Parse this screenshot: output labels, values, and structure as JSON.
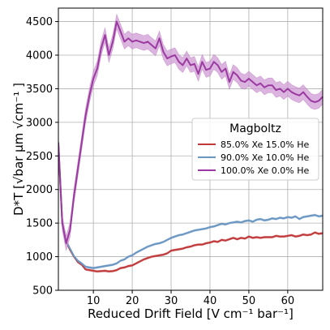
{
  "chart_data": {
    "type": "line",
    "xlabel": "Reduced Drift Field [V cm⁻¹ bar⁻¹]",
    "ylabel": "D*T [√bar μm √cm⁻¹ ]",
    "xlim": [
      1,
      69
    ],
    "ylim": [
      500,
      4700
    ],
    "xticks": [
      10,
      20,
      30,
      40,
      50,
      60
    ],
    "yticks": [
      500,
      1000,
      1500,
      2000,
      2500,
      3000,
      3500,
      4000,
      4500
    ],
    "grid": true,
    "legend": {
      "title": "Magboltz",
      "placement": "right"
    },
    "series": [
      {
        "name": "85.0% Xe 15.0% He",
        "color": "#c0393b",
        "band_color": "#e8a0a0",
        "band_halfwidth": 15,
        "x": [
          1,
          2,
          3,
          4,
          5,
          6,
          7,
          8,
          9,
          10,
          11,
          12,
          13,
          14,
          15,
          16,
          17,
          18,
          19,
          20,
          21,
          22,
          23,
          24,
          25,
          26,
          27,
          28,
          29,
          30,
          31,
          32,
          33,
          34,
          35,
          36,
          37,
          38,
          39,
          40,
          41,
          42,
          43,
          44,
          45,
          46,
          47,
          48,
          49,
          50,
          51,
          52,
          53,
          54,
          55,
          56,
          57,
          58,
          59,
          60,
          61,
          62,
          63,
          64,
          65,
          66,
          67,
          68,
          69
        ],
        "y": [
          2650,
          1500,
          1220,
          1100,
          1000,
          920,
          880,
          810,
          800,
          790,
          780,
          785,
          790,
          780,
          785,
          800,
          830,
          840,
          860,
          870,
          900,
          930,
          960,
          980,
          1000,
          1010,
          1020,
          1030,
          1050,
          1090,
          1100,
          1110,
          1120,
          1140,
          1150,
          1170,
          1180,
          1180,
          1200,
          1210,
          1230,
          1220,
          1250,
          1240,
          1260,
          1280,
          1260,
          1280,
          1270,
          1300,
          1280,
          1290,
          1280,
          1290,
          1290,
          1290,
          1310,
          1300,
          1300,
          1310,
          1320,
          1300,
          1310,
          1330,
          1320,
          1330,
          1360,
          1340,
          1350
        ]
      },
      {
        "name": "90.0% Xe 10.0% He",
        "color": "#6a96c2",
        "band_color": "#aecbe5",
        "band_halfwidth": 15,
        "x": [
          1,
          2,
          3,
          4,
          5,
          6,
          7,
          8,
          9,
          10,
          11,
          12,
          13,
          14,
          15,
          16,
          17,
          18,
          19,
          20,
          21,
          22,
          23,
          24,
          25,
          26,
          27,
          28,
          29,
          30,
          31,
          32,
          33,
          34,
          35,
          36,
          37,
          38,
          39,
          40,
          41,
          42,
          43,
          44,
          45,
          46,
          47,
          48,
          49,
          50,
          51,
          52,
          53,
          54,
          55,
          56,
          57,
          58,
          59,
          60,
          61,
          62,
          63,
          64,
          65,
          66,
          67,
          68,
          69
        ],
        "y": [
          2700,
          1500,
          1230,
          1120,
          1010,
          940,
          900,
          850,
          840,
          830,
          840,
          850,
          860,
          870,
          880,
          900,
          940,
          960,
          1000,
          1020,
          1060,
          1090,
          1120,
          1150,
          1170,
          1190,
          1200,
          1220,
          1250,
          1280,
          1300,
          1320,
          1330,
          1350,
          1370,
          1390,
          1400,
          1410,
          1420,
          1440,
          1450,
          1470,
          1490,
          1480,
          1500,
          1510,
          1520,
          1510,
          1530,
          1540,
          1520,
          1550,
          1560,
          1540,
          1550,
          1570,
          1560,
          1580,
          1570,
          1590,
          1580,
          1600,
          1560,
          1590,
          1600,
          1610,
          1620,
          1600,
          1610
        ]
      },
      {
        "name": "100.0% Xe 0.0% He",
        "color": "#9b3aa0",
        "band_color": "#cf9bd4",
        "band_halfwidth": 110,
        "x": [
          1,
          2,
          3,
          4,
          5,
          6,
          7,
          8,
          9,
          10,
          11,
          12,
          13,
          14,
          15,
          16,
          17,
          18,
          19,
          20,
          21,
          22,
          23,
          24,
          25,
          26,
          27,
          28,
          29,
          30,
          31,
          32,
          33,
          34,
          35,
          36,
          37,
          38,
          39,
          40,
          41,
          42,
          43,
          44,
          45,
          46,
          47,
          48,
          49,
          50,
          51,
          52,
          53,
          54,
          55,
          56,
          57,
          58,
          59,
          60,
          61,
          62,
          63,
          64,
          65,
          66,
          67,
          68,
          69
        ],
        "y": [
          2700,
          1500,
          1200,
          1400,
          1900,
          2300,
          2700,
          3100,
          3400,
          3650,
          3800,
          4100,
          4300,
          4000,
          4200,
          4500,
          4350,
          4200,
          4250,
          4200,
          4220,
          4200,
          4180,
          4200,
          4150,
          4100,
          4250,
          4050,
          3950,
          3980,
          4000,
          3900,
          3850,
          3950,
          3850,
          3870,
          3720,
          3900,
          3780,
          3800,
          3900,
          3850,
          3750,
          3800,
          3600,
          3750,
          3700,
          3620,
          3600,
          3650,
          3600,
          3550,
          3580,
          3520,
          3550,
          3550,
          3480,
          3500,
          3450,
          3500,
          3450,
          3420,
          3400,
          3450,
          3380,
          3320,
          3300,
          3320,
          3380
        ]
      }
    ]
  }
}
